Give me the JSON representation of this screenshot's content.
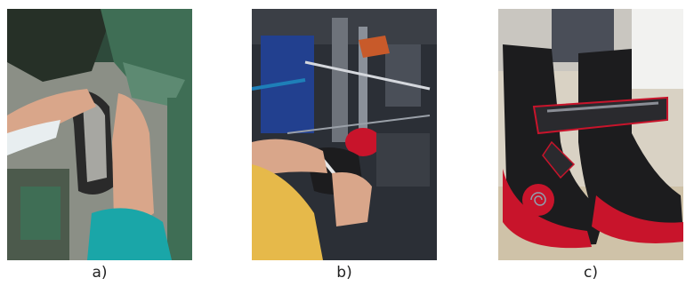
{
  "figure": {
    "panels": [
      {
        "caption": "a)",
        "scene": "stitching-machine-hands-icon"
      },
      {
        "caption": "b)",
        "scene": "lasting-machine-hands-icon"
      },
      {
        "caption": "c)",
        "scene": "finished-boots-icon"
      }
    ],
    "colors": {
      "machine_green": "#3f6e55",
      "skin": "#d9a68a",
      "sleeve_teal": "#1aa6a8",
      "sleeve_yellow": "#e6b94a",
      "patent_red": "#c8142b",
      "upper_black": "#1c1c1e"
    }
  }
}
